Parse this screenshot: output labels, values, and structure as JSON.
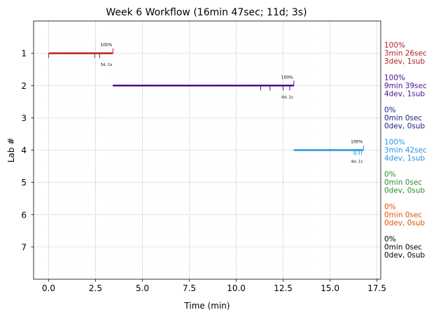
{
  "chart_data": {
    "type": "gantt",
    "title": "Week 6 Workflow (16min 47sec; 11d; 3s)",
    "xlabel": "Time (min)",
    "ylabel": "Lab #",
    "xlim": [
      -0.8,
      17.7
    ],
    "ylim": [
      8.0,
      0.0
    ],
    "xticks": [
      0.0,
      2.5,
      5.0,
      7.5,
      10.0,
      12.5,
      15.0,
      17.5
    ],
    "xtick_labels": [
      "0.0",
      "2.5",
      "5.0",
      "7.5",
      "10.0",
      "12.5",
      "15.0",
      "17.5"
    ],
    "yticks": [
      1,
      2,
      3,
      4,
      5,
      6,
      7
    ],
    "ytick_labels": [
      "1",
      "2",
      "3",
      "4",
      "5",
      "6",
      "7"
    ],
    "grid": true,
    "labs": [
      {
        "lab": 1,
        "color": "#b22222",
        "start": 0.0,
        "end": 3.43,
        "pct_label": "100%",
        "count_label": "3d, 1s",
        "dev_ticks": [
          0.0,
          2.45,
          2.72
        ],
        "sub_ticks": [
          3.43
        ],
        "side": [
          "100%",
          "3min 26sec",
          "3dev, 1sub"
        ]
      },
      {
        "lab": 2,
        "color": "#4b0e8c",
        "start": 3.42,
        "end": 13.07,
        "pct_label": "100%",
        "count_label": "4d, 1s",
        "dev_ticks": [
          11.3,
          11.8,
          12.5,
          12.85
        ],
        "sub_ticks": [
          13.07
        ],
        "side": [
          "100%",
          "9min 39sec",
          "4dev, 1sub"
        ]
      },
      {
        "lab": 3,
        "color": "#1a237e",
        "side": [
          "0%",
          "0min 0sec",
          "0dev, 0sub"
        ]
      },
      {
        "lab": 4,
        "color": "#2196e6",
        "start": 13.07,
        "end": 16.78,
        "pct_label": "100%",
        "count_label": "4d, 1s",
        "dev_ticks": [
          16.28,
          16.38,
          16.55,
          16.68
        ],
        "sub_ticks": [
          16.78
        ],
        "side": [
          "100%",
          "3min 42sec",
          "4dev, 1sub"
        ]
      },
      {
        "lab": 5,
        "color": "#2e8b2e",
        "side": [
          "0%",
          "0min 0sec",
          "0dev, 0sub"
        ]
      },
      {
        "lab": 6,
        "color": "#e65100",
        "side": [
          "0%",
          "0min 0sec",
          "0dev, 0sub"
        ]
      },
      {
        "lab": 7,
        "color": "#000000",
        "side": [
          "0%",
          "0min 0sec",
          "0dev, 0sub"
        ]
      }
    ]
  }
}
